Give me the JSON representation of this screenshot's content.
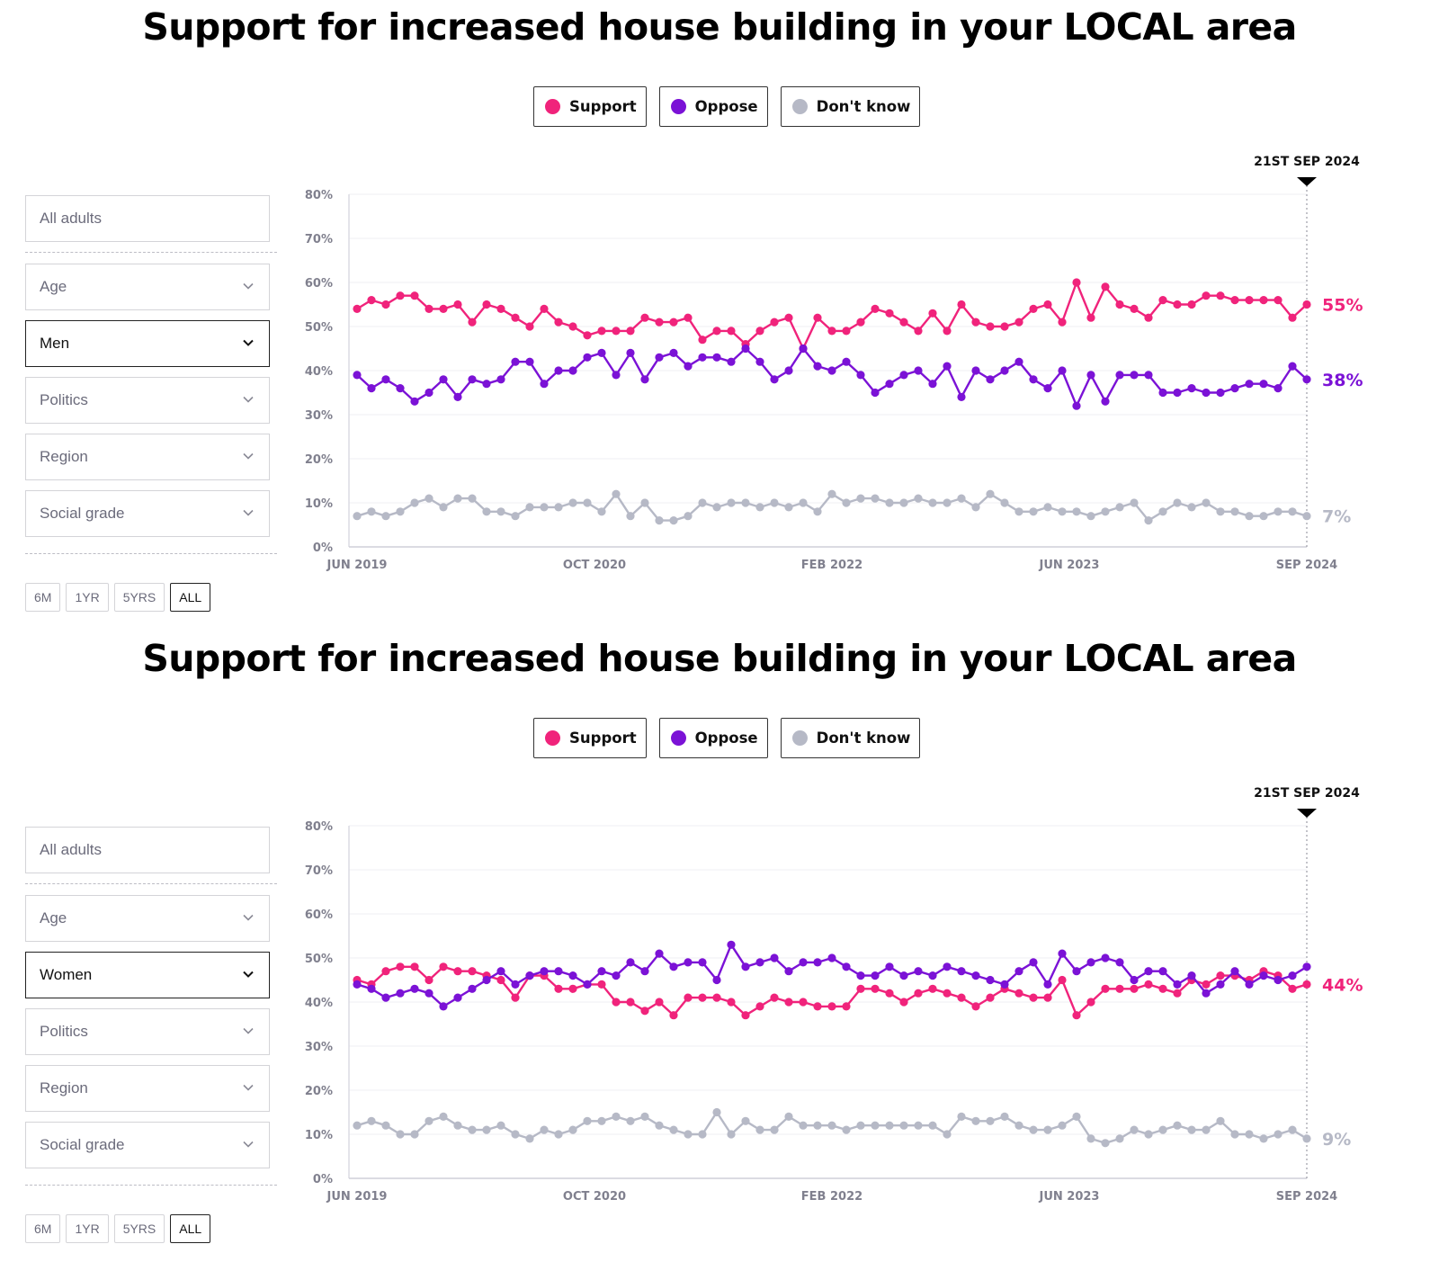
{
  "colors": {
    "support": "#f0237b",
    "oppose": "#7b12d6",
    "dont_know": "#b6b9c6"
  },
  "legend": [
    {
      "label": "Support",
      "color": "#f0237b"
    },
    {
      "label": "Oppose",
      "color": "#7b12d6"
    },
    {
      "label": "Don't know",
      "color": "#b6b9c6"
    }
  ],
  "filters": {
    "all_adults": "All adults",
    "age": "Age",
    "politics": "Politics",
    "region": "Region",
    "social_grade": "Social grade"
  },
  "range_buttons": [
    "6M",
    "1YR",
    "5YRS",
    "ALL"
  ],
  "range_selected": "ALL",
  "panels": [
    {
      "title": "Support for increased house building in your LOCAL area",
      "selected_filter": "Men"
    },
    {
      "title": "Support for increased house building in your LOCAL area",
      "selected_filter": "Women"
    }
  ],
  "chart_data": [
    {
      "type": "line",
      "title": "Support for increased house building in your LOCAL area",
      "subtitle": "Men",
      "ylim": [
        0,
        80
      ],
      "y_ticks": [
        "0%",
        "10%",
        "20%",
        "30%",
        "40%",
        "50%",
        "60%",
        "70%",
        "80%"
      ],
      "x_tick_labels": [
        "JUN 2019",
        "OCT 2020",
        "FEB 2022",
        "JUN 2023",
        "SEP 2024"
      ],
      "marker_label": "21ST SEP 2024",
      "grid": true,
      "legend_position": "top-center",
      "series": [
        {
          "name": "Support",
          "color": "#f0237b",
          "end_label": "55%",
          "values": [
            54,
            56,
            55,
            57,
            57,
            54,
            54,
            55,
            51,
            55,
            54,
            52,
            50,
            54,
            51,
            50,
            48,
            49,
            49,
            49,
            52,
            51,
            51,
            52,
            47,
            49,
            49,
            46,
            49,
            51,
            52,
            45,
            52,
            49,
            49,
            51,
            54,
            53,
            51,
            49,
            53,
            49,
            55,
            51,
            50,
            50,
            51,
            54,
            55,
            51,
            60,
            52,
            59,
            55,
            54,
            52,
            56,
            55,
            55,
            57,
            57,
            56,
            56,
            56,
            56,
            52,
            55
          ]
        },
        {
          "name": "Oppose",
          "color": "#7b12d6",
          "end_label": "38%",
          "values": [
            39,
            36,
            38,
            36,
            33,
            35,
            38,
            34,
            38,
            37,
            38,
            42,
            42,
            37,
            40,
            40,
            43,
            44,
            39,
            44,
            38,
            43,
            44,
            41,
            43,
            43,
            42,
            45,
            42,
            38,
            40,
            45,
            41,
            40,
            42,
            39,
            35,
            37,
            39,
            40,
            37,
            41,
            34,
            40,
            38,
            40,
            42,
            38,
            36,
            40,
            32,
            39,
            33,
            39,
            39,
            39,
            35,
            35,
            36,
            35,
            35,
            36,
            37,
            37,
            36,
            41,
            38
          ]
        },
        {
          "name": "Don't know",
          "color": "#b6b9c6",
          "end_label": "7%",
          "values": [
            7,
            8,
            7,
            8,
            10,
            11,
            9,
            11,
            11,
            8,
            8,
            7,
            9,
            9,
            9,
            10,
            10,
            8,
            12,
            7,
            10,
            6,
            6,
            7,
            10,
            9,
            10,
            10,
            9,
            10,
            9,
            10,
            8,
            12,
            10,
            11,
            11,
            10,
            10,
            11,
            10,
            10,
            11,
            9,
            12,
            10,
            8,
            8,
            9,
            8,
            8,
            7,
            8,
            9,
            10,
            6,
            8,
            10,
            9,
            10,
            8,
            8,
            7,
            7,
            8,
            8,
            7
          ]
        }
      ]
    },
    {
      "type": "line",
      "title": "Support for increased house building in your LOCAL area",
      "subtitle": "Women",
      "ylim": [
        0,
        80
      ],
      "y_ticks": [
        "0%",
        "10%",
        "20%",
        "30%",
        "40%",
        "50%",
        "60%",
        "70%",
        "80%"
      ],
      "x_tick_labels": [
        "JUN 2019",
        "OCT 2020",
        "FEB 2022",
        "JUN 2023",
        "SEP 2024"
      ],
      "marker_label": "21ST SEP 2024",
      "grid": true,
      "legend_position": "top-center",
      "series": [
        {
          "name": "Support",
          "color": "#f0237b",
          "end_label": "44%",
          "values": [
            45,
            44,
            47,
            48,
            48,
            45,
            48,
            47,
            47,
            46,
            45,
            41,
            46,
            46,
            43,
            43,
            44,
            44,
            40,
            40,
            38,
            40,
            37,
            41,
            41,
            41,
            40,
            37,
            39,
            41,
            40,
            40,
            39,
            39,
            39,
            43,
            43,
            42,
            40,
            42,
            43,
            42,
            41,
            39,
            41,
            43,
            42,
            41,
            41,
            45,
            37,
            40,
            43,
            43,
            43,
            44,
            43,
            42,
            45,
            44,
            46,
            46,
            45,
            47,
            46,
            43,
            44
          ]
        },
        {
          "name": "Oppose",
          "color": "#7b12d6",
          "end_label": "",
          "values": [
            44,
            43,
            41,
            42,
            43,
            42,
            39,
            41,
            43,
            45,
            47,
            44,
            46,
            47,
            47,
            46,
            44,
            47,
            46,
            49,
            47,
            51,
            48,
            49,
            49,
            45,
            53,
            48,
            49,
            50,
            47,
            49,
            49,
            50,
            48,
            46,
            46,
            48,
            46,
            47,
            46,
            48,
            47,
            46,
            45,
            44,
            47,
            49,
            44,
            51,
            47,
            49,
            50,
            49,
            45,
            47,
            47,
            44,
            46,
            42,
            44,
            47,
            44,
            46,
            45,
            46,
            48
          ]
        },
        {
          "name": "Don't know",
          "color": "#b6b9c6",
          "end_label": "9%",
          "values": [
            12,
            13,
            12,
            10,
            10,
            13,
            14,
            12,
            11,
            11,
            12,
            10,
            9,
            11,
            10,
            11,
            13,
            13,
            14,
            13,
            14,
            12,
            11,
            10,
            10,
            15,
            10,
            13,
            11,
            11,
            14,
            12,
            12,
            12,
            11,
            12,
            12,
            12,
            12,
            12,
            12,
            10,
            14,
            13,
            13,
            14,
            12,
            11,
            11,
            12,
            14,
            9,
            8,
            9,
            11,
            10,
            11,
            12,
            11,
            11,
            13,
            10,
            10,
            9,
            10,
            11,
            9
          ]
        }
      ]
    }
  ]
}
